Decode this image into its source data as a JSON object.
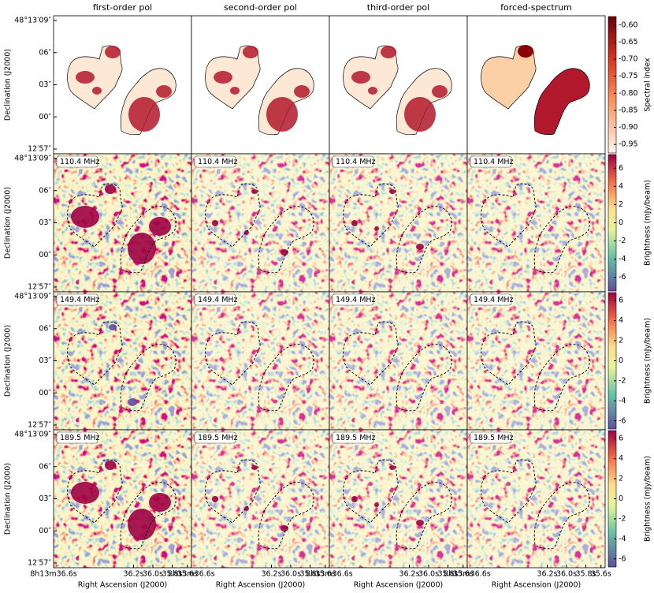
{
  "columns": [
    "first-order pol",
    "second-order pol",
    "third-order pol",
    "forced-spectrum"
  ],
  "frequencies": [
    "110.4 MHz",
    "149.4 MHz",
    "189.5 MHz"
  ],
  "y_axis": {
    "label": "Declination (J2000)",
    "ticks": [
      "48°13′09″",
      "06″",
      "03″",
      "00″",
      "12′57″"
    ]
  },
  "x_axis": {
    "label": "Right Ascension (J2000)",
    "ticks": [
      "8h13m36.6s",
      "36.2s",
      "36.0s",
      "35.8s",
      "35.6s"
    ]
  },
  "colorbars": [
    {
      "label": "Spectral index",
      "lim": [
        -0.975,
        -0.575
      ],
      "ticks": [
        {
          "value": -0.6,
          "label": "-0.60"
        },
        {
          "value": -0.65,
          "label": "-0.65"
        },
        {
          "value": -0.7,
          "label": "-0.70"
        },
        {
          "value": -0.75,
          "label": "-0.75"
        },
        {
          "value": -0.8,
          "label": "-0.80"
        },
        {
          "value": -0.85,
          "label": "-0.85"
        },
        {
          "value": -0.9,
          "label": "-0.90"
        },
        {
          "value": -0.95,
          "label": "-0.95"
        }
      ]
    },
    {
      "label": "Brightness (mJy/beam)",
      "lim": [
        -7.5,
        7.5
      ],
      "ticks": [
        -6,
        -4,
        -2,
        0,
        2,
        4,
        6
      ]
    },
    {
      "label": "Brightness (mJy/beam)",
      "lim": [
        -6.8,
        6.8
      ],
      "ticks": [
        -6,
        -4,
        -2,
        0,
        2,
        4,
        6
      ]
    },
    {
      "label": "Brightness (mJy/beam)",
      "lim": [
        -6.8,
        6.8
      ],
      "ticks": [
        -6,
        -4,
        -2,
        0,
        2,
        4,
        6
      ]
    }
  ]
}
